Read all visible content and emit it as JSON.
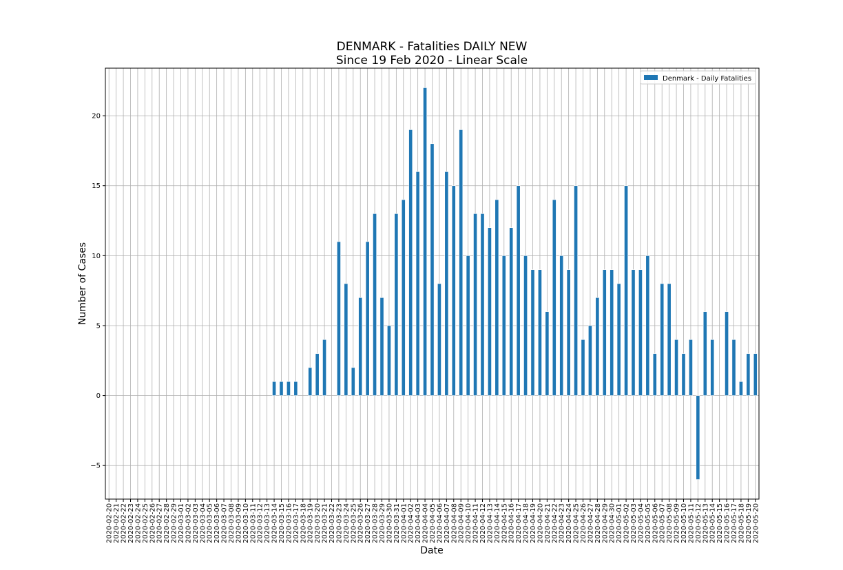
{
  "chart_data": {
    "type": "bar",
    "title": "DENMARK - Fatalities DAILY NEW",
    "subtitle": "Since 19 Feb 2020 - Linear Scale",
    "xlabel": "Date",
    "ylabel": "Number of Cases",
    "ylim": [
      -7.4,
      23.4
    ],
    "yticks": [
      -5,
      0,
      5,
      10,
      15,
      20
    ],
    "grid": true,
    "legend_position": "top-right",
    "categories": [
      "2020-02-20",
      "2020-02-21",
      "2020-02-22",
      "2020-02-23",
      "2020-02-24",
      "2020-02-25",
      "2020-02-26",
      "2020-02-27",
      "2020-02-28",
      "2020-02-29",
      "2020-03-01",
      "2020-03-02",
      "2020-03-03",
      "2020-03-04",
      "2020-03-05",
      "2020-03-06",
      "2020-03-07",
      "2020-03-08",
      "2020-03-09",
      "2020-03-10",
      "2020-03-11",
      "2020-03-12",
      "2020-03-13",
      "2020-03-14",
      "2020-03-15",
      "2020-03-16",
      "2020-03-17",
      "2020-03-18",
      "2020-03-19",
      "2020-03-20",
      "2020-03-21",
      "2020-03-22",
      "2020-03-23",
      "2020-03-24",
      "2020-03-25",
      "2020-03-26",
      "2020-03-27",
      "2020-03-28",
      "2020-03-29",
      "2020-03-30",
      "2020-03-31",
      "2020-04-01",
      "2020-04-02",
      "2020-04-03",
      "2020-04-04",
      "2020-04-05",
      "2020-04-06",
      "2020-04-07",
      "2020-04-08",
      "2020-04-09",
      "2020-04-10",
      "2020-04-11",
      "2020-04-12",
      "2020-04-13",
      "2020-04-14",
      "2020-04-15",
      "2020-04-16",
      "2020-04-17",
      "2020-04-18",
      "2020-04-19",
      "2020-04-20",
      "2020-04-21",
      "2020-04-22",
      "2020-04-23",
      "2020-04-24",
      "2020-04-25",
      "2020-04-26",
      "2020-04-27",
      "2020-04-28",
      "2020-04-29",
      "2020-04-30",
      "2020-05-01",
      "2020-05-02",
      "2020-05-03",
      "2020-05-04",
      "2020-05-05",
      "2020-05-06",
      "2020-05-07",
      "2020-05-08",
      "2020-05-09",
      "2020-05-10",
      "2020-05-11",
      "2020-05-12",
      "2020-05-13",
      "2020-05-14",
      "2020-05-15",
      "2020-05-16",
      "2020-05-17",
      "2020-05-18",
      "2020-05-19",
      "2020-05-20"
    ],
    "series": [
      {
        "name": "Denmark - Daily Fatalities",
        "color": "#1f77b4",
        "values": [
          0,
          0,
          0,
          0,
          0,
          0,
          0,
          0,
          0,
          0,
          0,
          0,
          0,
          0,
          0,
          0,
          0,
          0,
          0,
          0,
          0,
          0,
          0,
          1,
          1,
          1,
          1,
          0,
          2,
          3,
          4,
          0,
          11,
          8,
          2,
          7,
          11,
          13,
          7,
          5,
          13,
          14,
          19,
          16,
          22,
          18,
          8,
          16,
          15,
          19,
          10,
          13,
          13,
          12,
          14,
          10,
          12,
          15,
          10,
          9,
          9,
          6,
          14,
          10,
          9,
          15,
          4,
          5,
          7,
          9,
          9,
          8,
          15,
          9,
          9,
          10,
          3,
          8,
          8,
          4,
          3,
          4,
          -6,
          6,
          4,
          0,
          6,
          4,
          1,
          3,
          3
        ]
      }
    ]
  }
}
